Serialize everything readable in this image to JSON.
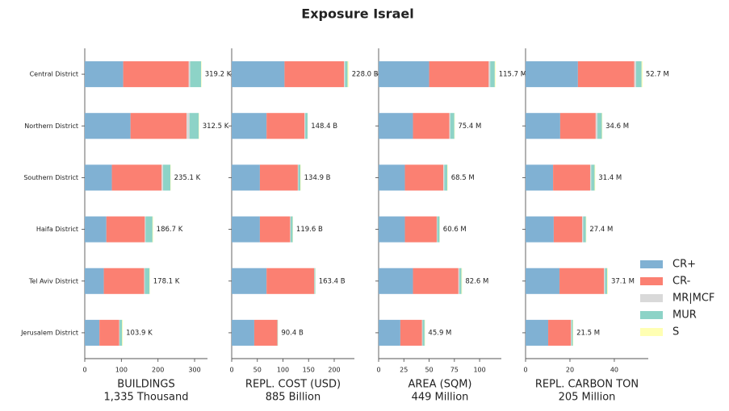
{
  "title": "Exposure Israel",
  "chart_data": {
    "type": "bar",
    "orientation": "horizontal",
    "stacked": true,
    "legend": "right",
    "categories": [
      "Central District",
      "Northern District",
      "Southern District",
      "Haifa District",
      "Tel Aviv District",
      "Jerusalem District"
    ],
    "series": [
      {
        "name": "CR+",
        "color": "#80b1d3"
      },
      {
        "name": "CR-",
        "color": "#fb8072"
      },
      {
        "name": "MR|MCF",
        "color": "#d9d9d9"
      },
      {
        "name": "MUR",
        "color": "#8dd3c7"
      },
      {
        "name": "S",
        "color": "#ffffb3"
      }
    ],
    "panels": [
      {
        "xlabel": "BUILDINGS",
        "note": "1,335 Thousand",
        "xlim": [
          0,
          335.2
        ],
        "xticks": [
          0,
          100,
          200,
          300
        ],
        "values": [
          [
            105,
            125,
            74,
            59,
            52,
            40
          ],
          [
            179,
            153,
            136,
            105,
            110,
            54
          ],
          [
            4,
            8,
            4,
            2,
            2,
            1
          ],
          [
            30,
            25.5,
            20,
            19,
            13,
            7
          ],
          [
            1.2,
            1,
            1.1,
            1.7,
            1.1,
            1.9
          ]
        ],
        "totals": [
          319.2,
          312.5,
          235.1,
          186.7,
          178.1,
          103.9
        ],
        "total_labels": [
          "319.2 K",
          "312.5 K",
          "235.1 K",
          "186.7 K",
          "178.1 K",
          "103.9 K"
        ]
      },
      {
        "xlabel": "REPL. COST (USD)",
        "note": "885 Billion",
        "xlim": [
          0,
          239.4
        ],
        "xticks": [
          0,
          50,
          100,
          150,
          200
        ],
        "values": [
          [
            103,
            68,
            55,
            55,
            68,
            44
          ],
          [
            116,
            74,
            74,
            59,
            93,
            45
          ],
          [
            2,
            1.5,
            1,
            1,
            0.5,
            0.3
          ],
          [
            5,
            4.5,
            4,
            4,
            1.5,
            0.8
          ],
          [
            2,
            0.4,
            0.9,
            0.6,
            0.4,
            0.3
          ]
        ],
        "totals": [
          228.0,
          148.4,
          134.9,
          119.6,
          163.4,
          90.4
        ],
        "total_labels": [
          "228.0 B",
          "148.4 B",
          "134.9 B",
          "119.6 B",
          "163.4 B",
          "90.4 B"
        ]
      },
      {
        "xlabel": "AREA (SQM)",
        "note": "449 Million",
        "xlim": [
          0,
          121.5
        ],
        "xticks": [
          0,
          25,
          50,
          75,
          100
        ],
        "values": [
          [
            50,
            34,
            26,
            26,
            34,
            21.5
          ],
          [
            59,
            36,
            38,
            31.5,
            45,
            21.5
          ],
          [
            1.5,
            1,
            1,
            0.5,
            1,
            0.5
          ],
          [
            4.5,
            4,
            3,
            2.3,
            2,
            2
          ],
          [
            0.7,
            0.4,
            0.5,
            0.3,
            0.6,
            0.4
          ]
        ],
        "totals": [
          115.7,
          75.4,
          68.5,
          60.6,
          82.6,
          45.9
        ],
        "total_labels": [
          "115.7 M",
          "75.4 M",
          "68.5 M",
          "60.6 M",
          "82.6 M",
          "45.9 M"
        ]
      },
      {
        "xlabel": "REPL. CARBON TON",
        "note": "205 Million",
        "xlim": [
          0,
          55.3
        ],
        "xticks": [
          0,
          20,
          40
        ],
        "values": [
          [
            23.6,
            15.6,
            12.4,
            12.7,
            15.3,
            10.2
          ],
          [
            25.4,
            16,
            16.7,
            12.8,
            20,
            10.2
          ],
          [
            0.8,
            0.8,
            0.5,
            0.5,
            0.5,
            0.3
          ],
          [
            2.5,
            2,
            1.5,
            1.2,
            1,
            0.6
          ],
          [
            0.4,
            0.2,
            0.3,
            0.2,
            0.3,
            0.2
          ]
        ],
        "totals": [
          52.7,
          34.6,
          31.4,
          27.4,
          37.1,
          21.5
        ],
        "total_labels": [
          "52.7 M",
          "34.6 M",
          "31.4 M",
          "27.4 M",
          "37.1 M",
          "21.5 M"
        ]
      }
    ]
  }
}
